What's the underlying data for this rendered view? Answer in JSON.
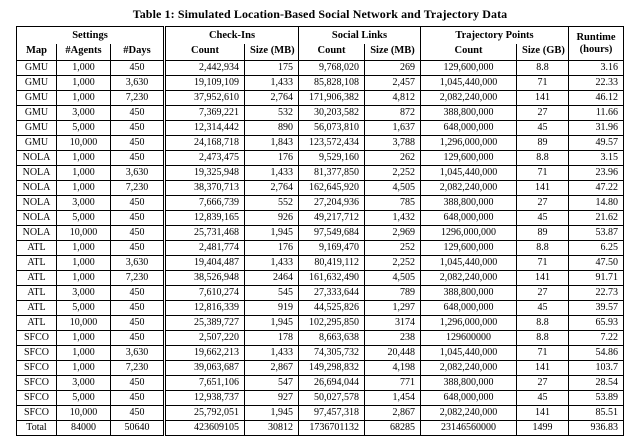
{
  "title": "Table 1: Simulated Location-Based Social Network and Trajectory Data",
  "table": {
    "groups": [
      {
        "label": "Settings"
      },
      {
        "label": "Check-Ins"
      },
      {
        "label": "Social Links"
      },
      {
        "label": "Trajectory Points"
      },
      {
        "label": "Runtime",
        "sub": "(hours)"
      }
    ],
    "sub_headers": [
      "Map",
      "#Agents",
      "#Days",
      "Count",
      "Size (MB)",
      "Count",
      "Size (MB)",
      "Count",
      "Size (GB)"
    ],
    "rows": [
      [
        "GMU",
        "1,000",
        "450",
        "2,442,934",
        "175",
        "9,768,020",
        "269",
        "129,600,000",
        "8.8",
        "3.16"
      ],
      [
        "GMU",
        "1,000",
        "3,630",
        "19,109,109",
        "1,433",
        "85,828,108",
        "2,457",
        "1,045,440,000",
        "71",
        "22.33"
      ],
      [
        "GMU",
        "1,000",
        "7,230",
        "37,952,610",
        "2,764",
        "171,906,382",
        "4,812",
        "2,082,240,000",
        "141",
        "46.12"
      ],
      [
        "GMU",
        "3,000",
        "450",
        "7,369,221",
        "532",
        "30,203,582",
        "872",
        "388,800,000",
        "27",
        "11.66"
      ],
      [
        "GMU",
        "5,000",
        "450",
        "12,314,442",
        "890",
        "56,073,810",
        "1,637",
        "648,000,000",
        "45",
        "31.96"
      ],
      [
        "GMU",
        "10,000",
        "450",
        "24,168,718",
        "1,843",
        "123,572,434",
        "3,788",
        "1,296,000,000",
        "89",
        "49.57"
      ],
      [
        "NOLA",
        "1,000",
        "450",
        "2,473,475",
        "176",
        "9,529,160",
        "262",
        "129,600,000",
        "8.8",
        "3.15"
      ],
      [
        "NOLA",
        "1,000",
        "3,630",
        "19,325,948",
        "1,433",
        "81,377,850",
        "2,252",
        "1,045,440,000",
        "71",
        "23.96"
      ],
      [
        "NOLA",
        "1,000",
        "7,230",
        "38,370,713",
        "2,764",
        "162,645,920",
        "4,505",
        "2,082,240,000",
        "141",
        "47.22"
      ],
      [
        "NOLA",
        "3,000",
        "450",
        "7,666,739",
        "552",
        "27,204,936",
        "785",
        "388,800,000",
        "27",
        "14.80"
      ],
      [
        "NOLA",
        "5,000",
        "450",
        "12,839,165",
        "926",
        "49,217,712",
        "1,432",
        "648,000,000",
        "45",
        "21.62"
      ],
      [
        "NOLA",
        "10,000",
        "450",
        "25,731,468",
        "1,945",
        "97,549,684",
        "2,969",
        "1296,000,000",
        "89",
        "53.87"
      ],
      [
        "ATL",
        "1,000",
        "450",
        "2,481,774",
        "176",
        "9,169,470",
        "252",
        "129,600,000",
        "8.8",
        "6.25"
      ],
      [
        "ATL",
        "1,000",
        "3,630",
        "19,404,487",
        "1,433",
        "80,419,112",
        "2,252",
        "1,045,440,000",
        "71",
        "47.50"
      ],
      [
        "ATL",
        "1,000",
        "7,230",
        "38,526,948",
        "2464",
        "161,632,490",
        "4,505",
        "2,082,240,000",
        "141",
        "91.71"
      ],
      [
        "ATL",
        "3,000",
        "450",
        "7,610,274",
        "545",
        "27,333,644",
        "789",
        "388,800,000",
        "27",
        "22.73"
      ],
      [
        "ATL",
        "5,000",
        "450",
        "12,816,339",
        "919",
        "44,525,826",
        "1,297",
        "648,000,000",
        "45",
        "39.57"
      ],
      [
        "ATL",
        "10,000",
        "450",
        "25,389,727",
        "1,945",
        "102,295,850",
        "3174",
        "1,296,000,000",
        "8.8",
        "65.93"
      ],
      [
        "SFCO",
        "1,000",
        "450",
        "2,507,220",
        "178",
        "8,663,638",
        "238",
        "129600000",
        "8.8",
        "7.22"
      ],
      [
        "SFCO",
        "1,000",
        "3,630",
        "19,662,213",
        "1,433",
        "74,305,732",
        "20,448",
        "1,045,440,000",
        "71",
        "54.86"
      ],
      [
        "SFCO",
        "1,000",
        "7,230",
        "39,063,687",
        "2,867",
        "149,298,832",
        "4,198",
        "2,082,240,000",
        "141",
        "103.7"
      ],
      [
        "SFCO",
        "3,000",
        "450",
        "7,651,106",
        "547",
        "26,694,044",
        "771",
        "388,800,000",
        "27",
        "28.54"
      ],
      [
        "SFCO",
        "5,000",
        "450",
        "12,938,737",
        "927",
        "50,027,578",
        "1,454",
        "648,000,000",
        "45",
        "53.89"
      ],
      [
        "SFCO",
        "10,000",
        "450",
        "25,792,051",
        "1,945",
        "97,457,318",
        "2,867",
        "2,082,240,000",
        "141",
        "85.51"
      ]
    ],
    "total": [
      "Total",
      "84000",
      "50640",
      "423609105",
      "30812",
      "1736701132",
      "68285",
      "23146560000",
      "1499",
      "936.83"
    ]
  }
}
